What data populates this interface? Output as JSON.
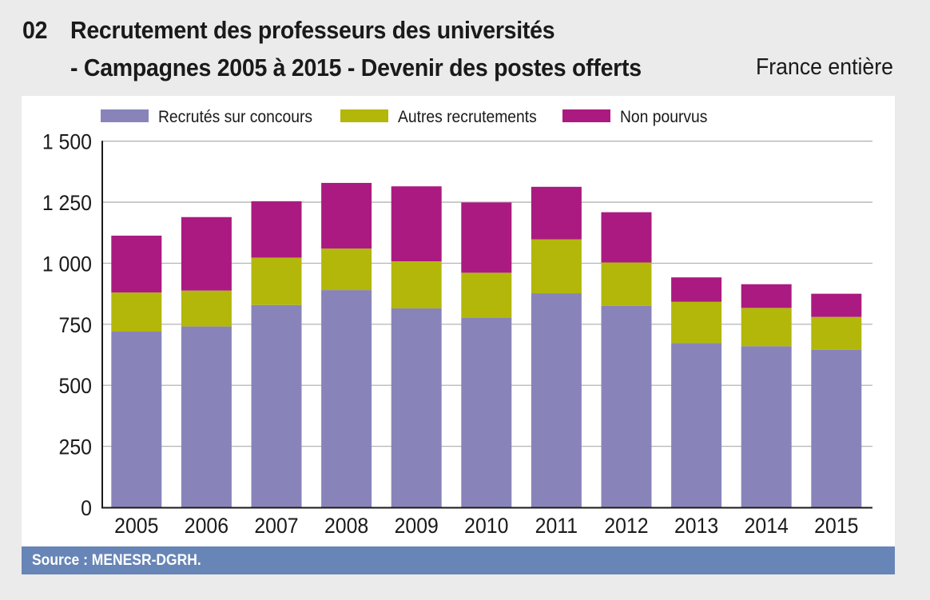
{
  "header": {
    "number": "02",
    "title_line1": "Recrutement des professeurs des universités",
    "title_line2": "- Campagnes 2005 à 2015 - Devenir des postes offerts",
    "scope": "France entière"
  },
  "footer": {
    "source": "Source : MENESR-DGRH."
  },
  "colors": {
    "recrutes": "#8884ba",
    "autres": "#b3b70a",
    "non_pourvus": "#ab1a80",
    "source_band": "#6785b6",
    "background": "#ebebeb",
    "gridline": "#b4b4b4"
  },
  "chart_data": {
    "type": "bar",
    "stacked": true,
    "title": "Recrutement des professeurs des universités - Campagnes 2005 à 2015 - Devenir des postes offerts",
    "subtitle": "France entière",
    "xlabel": "",
    "ylabel": "",
    "categories": [
      "2005",
      "2006",
      "2007",
      "2008",
      "2009",
      "2010",
      "2011",
      "2012",
      "2013",
      "2014",
      "2015"
    ],
    "series": [
      {
        "name": "Recrutés sur concours",
        "color": "#8884ba",
        "values": [
          720,
          741,
          829,
          890,
          815,
          777,
          877,
          825,
          673,
          660,
          645
        ]
      },
      {
        "name": "Autres recrutements",
        "color": "#b3b70a",
        "values": [
          160,
          147,
          194,
          170,
          193,
          184,
          221,
          178,
          169,
          157,
          135
        ]
      },
      {
        "name": "Non pourvus",
        "color": "#ab1a80",
        "values": [
          233,
          301,
          231,
          269,
          307,
          288,
          215,
          206,
          100,
          97,
          95
        ]
      }
    ],
    "ylim": [
      0,
      1500
    ],
    "yticks": [
      0,
      250,
      500,
      750,
      1000,
      1250,
      1500
    ],
    "ytick_labels": [
      "0",
      "250",
      "500",
      "750",
      "1 000",
      "1 250",
      "1 500"
    ],
    "grid": true,
    "legend_position": "top"
  }
}
